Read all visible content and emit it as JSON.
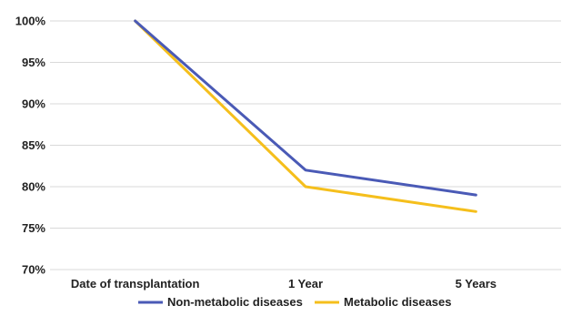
{
  "chart_data": {
    "type": "line",
    "categories": [
      "Date of transplantation",
      "1 Year",
      "5 Years"
    ],
    "series": [
      {
        "name": "Non-metabolic diseases",
        "values": [
          100,
          82,
          79
        ],
        "color": "#4a5ab6"
      },
      {
        "name": "Metabolic diseases",
        "values": [
          100,
          80,
          77
        ],
        "color": "#f5bf1c"
      }
    ],
    "y_ticks": [
      "70%",
      "75%",
      "80%",
      "85%",
      "90%",
      "95%",
      "100%"
    ],
    "ylim": [
      70,
      100
    ],
    "y_unit": "%",
    "grid": true,
    "grid_color": "#d9d9d9",
    "legend_position": "bottom"
  }
}
